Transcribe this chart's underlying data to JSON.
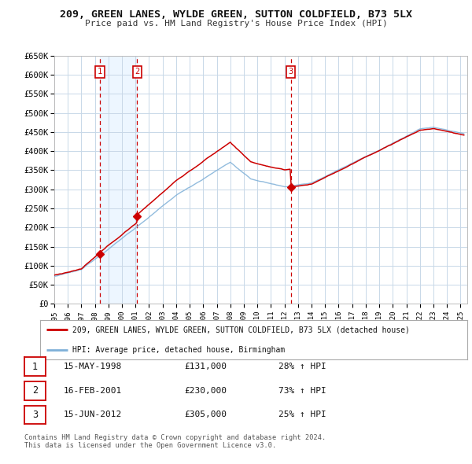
{
  "title": "209, GREEN LANES, WYLDE GREEN, SUTTON COLDFIELD, B73 5LX",
  "subtitle": "Price paid vs. HM Land Registry's House Price Index (HPI)",
  "ylim": [
    0,
    650000
  ],
  "yticks": [
    0,
    50000,
    100000,
    150000,
    200000,
    250000,
    300000,
    350000,
    400000,
    450000,
    500000,
    550000,
    600000,
    650000
  ],
  "ytick_labels": [
    "£0",
    "£50K",
    "£100K",
    "£150K",
    "£200K",
    "£250K",
    "£300K",
    "£350K",
    "£400K",
    "£450K",
    "£500K",
    "£550K",
    "£600K",
    "£650K"
  ],
  "xlim_start": 1995.0,
  "xlim_end": 2025.5,
  "xticks": [
    1995,
    1996,
    1997,
    1998,
    1999,
    2000,
    2001,
    2002,
    2003,
    2004,
    2005,
    2006,
    2007,
    2008,
    2009,
    2010,
    2011,
    2012,
    2013,
    2014,
    2015,
    2016,
    2017,
    2018,
    2019,
    2020,
    2021,
    2022,
    2023,
    2024,
    2025
  ],
  "sale_dates": [
    1998.37,
    2001.12,
    2012.46
  ],
  "sale_prices": [
    131000,
    230000,
    305000
  ],
  "sale_labels": [
    "1",
    "2",
    "3"
  ],
  "legend_red": "209, GREEN LANES, WYLDE GREEN, SUTTON COLDFIELD, B73 5LX (detached house)",
  "legend_blue": "HPI: Average price, detached house, Birmingham",
  "table_rows": [
    [
      "1",
      "15-MAY-1998",
      "£131,000",
      "28% ↑ HPI"
    ],
    [
      "2",
      "16-FEB-2001",
      "£230,000",
      "73% ↑ HPI"
    ],
    [
      "3",
      "15-JUN-2012",
      "£305,000",
      "25% ↑ HPI"
    ]
  ],
  "footer": "Contains HM Land Registry data © Crown copyright and database right 2024.\nThis data is licensed under the Open Government Licence v3.0.",
  "bg_color": "#ffffff",
  "grid_color": "#c8d8e8",
  "red_line_color": "#cc0000",
  "blue_line_color": "#7fb0d8",
  "vline_color": "#cc0000",
  "shading_color": "#ddeeff"
}
